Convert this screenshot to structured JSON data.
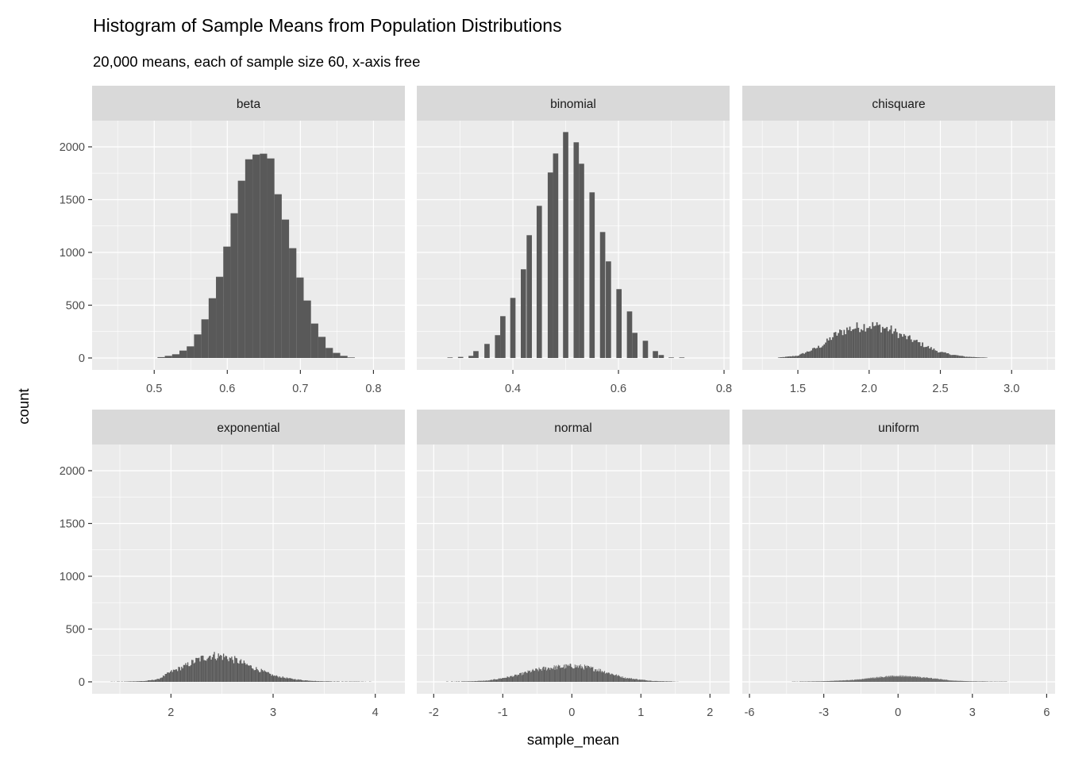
{
  "chart_data": {
    "type": "bar",
    "title": "Histogram of Sample Means from Population Distributions",
    "subtitle": "20,000 means, each of sample size 60, x-axis free",
    "xlabel": "sample_mean",
    "ylabel": "count",
    "ylim": [
      -113,
      2248
    ],
    "yticks": [
      0,
      500,
      1000,
      1500,
      2000
    ],
    "yticklabels": [
      "0",
      "500",
      "1000",
      "1500",
      "2000"
    ],
    "grid": true,
    "colors": {
      "bar": "#595959",
      "panel": "#ebebeb",
      "strip": "#d9d9d9",
      "grid": "#ffffff"
    },
    "panels": [
      {
        "name": "beta",
        "xlim": [
          0.415,
          0.843
        ],
        "xticks": [
          0.5,
          0.6,
          0.7,
          0.8
        ],
        "xticklabels": [
          "0.5",
          "0.6",
          "0.7",
          "0.8"
        ],
        "xminor": [
          0.45,
          0.55,
          0.65,
          0.75
        ],
        "binwidth": 0.01,
        "bin_start": 0.5045,
        "counts": [
          8,
          20,
          35,
          70,
          110,
          223,
          366,
          566,
          769,
          1055,
          1371,
          1679,
          1882,
          1927,
          1935,
          1890,
          1551,
          1311,
          1040,
          762,
          544,
          326,
          200,
          95,
          48,
          20,
          5
        ]
      },
      {
        "name": "binomial",
        "xlim": [
          0.218,
          0.8105
        ],
        "xticks": [
          0.4,
          0.6,
          0.8
        ],
        "xticklabels": [
          "0.4",
          "0.6",
          "0.8"
        ],
        "xminor": [
          0.3,
          0.5,
          0.7
        ],
        "binwidth": 0.01,
        "bars": [
          [
            0.276,
            5
          ],
          [
            0.296,
            10
          ],
          [
            0.316,
            20
          ],
          [
            0.325,
            65
          ],
          [
            0.346,
            133
          ],
          [
            0.366,
            216
          ],
          [
            0.376,
            396
          ],
          [
            0.395,
            569
          ],
          [
            0.415,
            840
          ],
          [
            0.426,
            1163
          ],
          [
            0.445,
            1441
          ],
          [
            0.466,
            1757
          ],
          [
            0.476,
            1937
          ],
          [
            0.495,
            2140
          ],
          [
            0.515,
            2043
          ],
          [
            0.525,
            1840
          ],
          [
            0.545,
            1569
          ],
          [
            0.565,
            1193
          ],
          [
            0.576,
            915
          ],
          [
            0.596,
            652
          ],
          [
            0.616,
            441
          ],
          [
            0.626,
            238
          ],
          [
            0.646,
            163
          ],
          [
            0.665,
            65
          ],
          [
            0.676,
            28
          ],
          [
            0.695,
            5
          ],
          [
            0.715,
            5
          ]
        ]
      },
      {
        "name": "chisquare",
        "xlim": [
          1.11,
          3.305
        ],
        "xticks": [
          1.5,
          2.0,
          2.5,
          3.0
        ],
        "xticklabels": [
          "1.5",
          "2.0",
          "2.5",
          "3.0"
        ],
        "xminor": [
          1.25,
          1.75,
          2.25,
          2.75,
          3.25
        ],
        "binwidth": 0.01,
        "profile_x": [
          1.35,
          1.5,
          1.57,
          1.67,
          1.76,
          1.85,
          1.95,
          2.0,
          2.07,
          2.15,
          2.22,
          2.31,
          2.41,
          2.5,
          2.59,
          2.68,
          2.83
        ],
        "profile_count": [
          2,
          22,
          60,
          118,
          218,
          273,
          300,
          310,
          298,
          268,
          218,
          168,
          105,
          55,
          30,
          12,
          3
        ]
      },
      {
        "name": "exponential",
        "xlim": [
          1.228,
          4.29
        ],
        "xticks": [
          2,
          3,
          4
        ],
        "xticklabels": [
          "2",
          "3",
          "4"
        ],
        "xminor": [
          1.5,
          2.5,
          3.5
        ],
        "binwidth": 0.01,
        "profile_x": [
          1.41,
          1.565,
          1.747,
          1.876,
          2.0,
          2.13,
          2.26,
          2.39,
          2.52,
          2.65,
          2.78,
          2.91,
          3.01,
          3.17,
          3.3,
          3.45,
          3.68,
          3.96
        ],
        "profile_count": [
          2,
          3,
          8,
          25,
          95,
          145,
          208,
          250,
          240,
          200,
          145,
          95,
          58,
          30,
          15,
          6,
          3,
          2
        ]
      },
      {
        "name": "normal",
        "xlim": [
          -2.245,
          2.284
        ],
        "xticks": [
          -2,
          -1,
          0,
          1,
          2
        ],
        "xticklabels": [
          "-2",
          "-1",
          "0",
          "1",
          "2"
        ],
        "xminor": [
          -1.5,
          -0.5,
          0.5,
          1.5
        ],
        "binwidth": 0.01,
        "profile_x": [
          -1.82,
          -1.48,
          -1.21,
          -0.98,
          -0.79,
          -0.6,
          -0.41,
          -0.22,
          0.01,
          0.2,
          0.39,
          0.58,
          0.77,
          1.0,
          1.19,
          1.54
        ],
        "profile_count": [
          2.5,
          5,
          12,
          38,
          63,
          100,
          125,
          138,
          150,
          138,
          113,
          75,
          38,
          20,
          8,
          2.5
        ]
      },
      {
        "name": "uniform",
        "xlim": [
          -6.29,
          6.34
        ],
        "xticks": [
          -6,
          -3,
          0,
          3,
          6
        ],
        "xticklabels": [
          "-6",
          "-3",
          "0",
          "3",
          "6"
        ],
        "xminor": [
          -4.5,
          -1.5,
          1.5,
          4.5
        ],
        "binwidth": 0.01,
        "profile_x": [
          -4.3,
          -3.07,
          -2.0,
          -1.47,
          -0.72,
          0.03,
          0.77,
          1.52,
          2.16,
          2.91,
          4.4
        ],
        "profile_count": [
          2.5,
          5,
          15,
          25,
          45,
          55,
          45,
          30,
          12,
          5,
          2.5
        ]
      }
    ]
  }
}
